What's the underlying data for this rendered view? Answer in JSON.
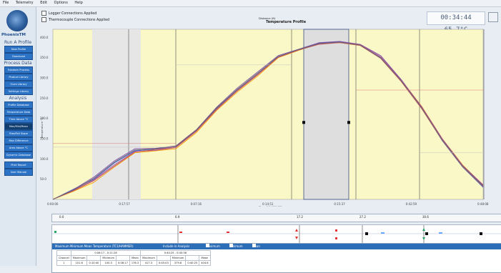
{
  "menu": [
    "File",
    "Telemetry",
    "Edit",
    "Options",
    "Help"
  ],
  "sidebar": {
    "logo_text": "PhoenixTM",
    "run_title": "Run A Profile",
    "run_buttons": [
      "New Profile",
      "Download"
    ],
    "process_title": "Process Data",
    "process_buttons": [
      "Random Process",
      "Product Library",
      "Oven Library",
      "Settings Library"
    ],
    "analysis_title": "Analysis",
    "analysis_buttons": [
      "Profile Database",
      "Temperature Data",
      "Time Above °C",
      "Max/Min/Mean",
      "Rise/Fall Slope",
      "Max Difference",
      "Area Above °C",
      "Dynamic Database"
    ],
    "footer_buttons": [
      "Print Report",
      "User Manual"
    ]
  },
  "header": {
    "check_1": "Logger Connections Applied",
    "check_2": "Thermocouple Connections Applied",
    "readout": "00:34:44   65.7°C"
  },
  "chart_data": {
    "type": "line",
    "title": "Temperature Profile",
    "ylabel": "Temperature °C",
    "xlabel": "Time (HH:MM:SS)",
    "y_ticks": [
      50,
      100,
      150,
      200,
      250,
      300,
      350,
      400
    ],
    "x_ticks": [
      "0:00:00",
      "0:17:57",
      "0:07:16",
      "0:14:51",
      "0:15:37",
      "0:42:59",
      "0:48:08"
    ],
    "ylim": [
      0,
      420
    ],
    "grid": false,
    "series": [
      {
        "color": "#f7a100",
        "values": [
          0,
          20,
          42,
          80,
          115,
          120,
          125,
          165,
          220,
          265,
          305,
          350,
          368,
          385,
          387,
          380,
          350,
          295,
          230,
          150,
          85,
          35
        ]
      },
      {
        "color": "#3e5fd1",
        "values": [
          0,
          25,
          50,
          90,
          120,
          124,
          130,
          170,
          225,
          270,
          310,
          352,
          370,
          386,
          389,
          381,
          350,
          292,
          225,
          145,
          80,
          30
        ]
      },
      {
        "color": "#7a48a9",
        "values": [
          0,
          24,
          55,
          95,
          125,
          126,
          132,
          172,
          228,
          275,
          315,
          355,
          371,
          387,
          390,
          383,
          355,
          296,
          228,
          148,
          83,
          34
        ]
      },
      {
        "color": "#b04d8e",
        "values": [
          0,
          22,
          48,
          85,
          118,
          121,
          128,
          168,
          222,
          268,
          308,
          351,
          369,
          384,
          388,
          382,
          352,
          294,
          229,
          150,
          84,
          36
        ]
      },
      {
        "color": "#c45a5a",
        "values": [
          0,
          21,
          46,
          82,
          117,
          123,
          129,
          169,
          223,
          269,
          309,
          351,
          369,
          383,
          387,
          380,
          348,
          291,
          224,
          146,
          81,
          32
        ]
      },
      {
        "color": "#6a6a6a",
        "values": [
          0,
          23,
          52,
          92,
          122,
          125,
          131,
          171,
          226,
          272,
          312,
          353,
          370,
          385,
          388,
          381,
          349,
          293,
          226,
          147,
          82,
          33
        ]
      }
    ]
  },
  "distance": {
    "labels": [
      "0.0",
      "6.9",
      "17.2",
      "27.2",
      "30.6"
    ],
    "title": "Distance (ft)"
  },
  "table": {
    "title": "Maximum Minimum Mean Temperature (TC1/HAMMER)",
    "include": "Include in Analysis",
    "check_maximum": "Maximum",
    "check_minimum": "Minimum",
    "check_mean": "Mean",
    "range_a": "0:06:17 - 0:11:28",
    "range_b": "0:40:25 - 0:45:36",
    "columns": [
      "Channel",
      "Maximum",
      "",
      "Minimum",
      "",
      "Mean",
      "Maximum",
      "",
      "Minimum",
      "",
      "Mean"
    ],
    "row": [
      "1",
      "101.6",
      "0:10:40",
      "100.3",
      "0:08:17",
      "176.3",
      "417.3",
      "0:45:03",
      "379.8",
      "0:40:25",
      "404.6"
    ]
  }
}
